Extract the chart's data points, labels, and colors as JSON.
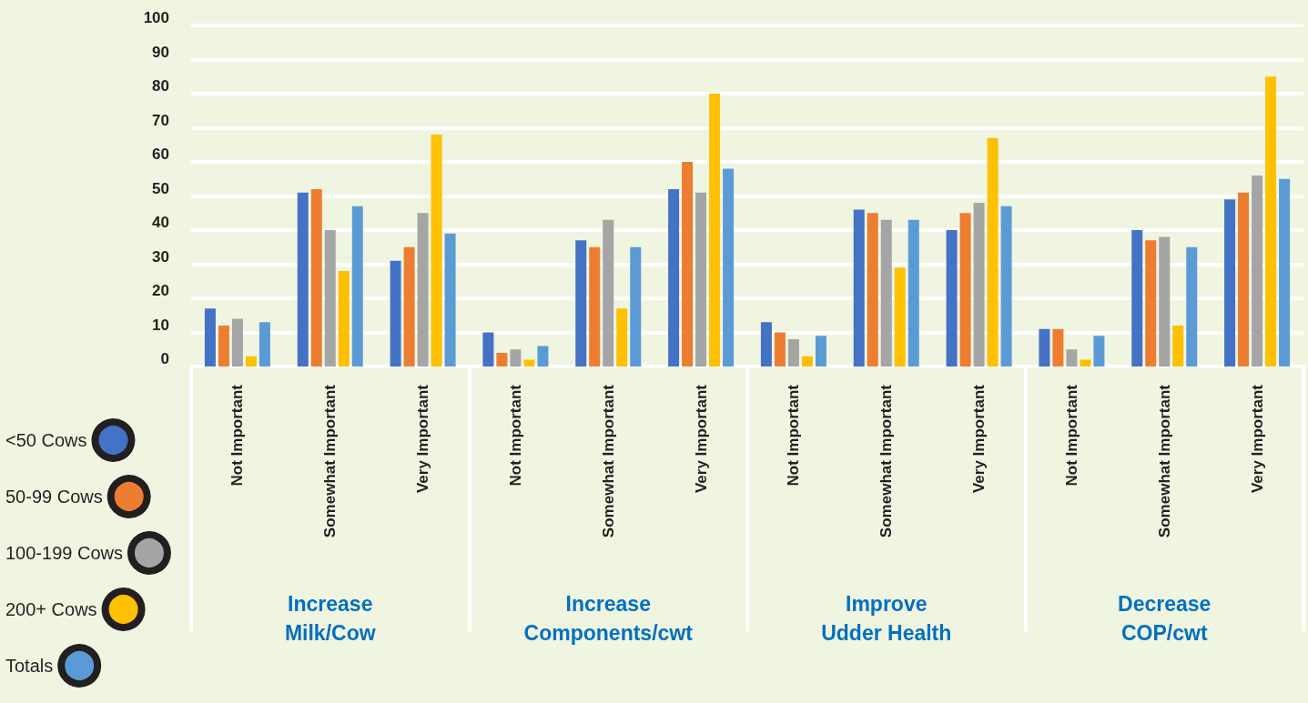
{
  "chart_data": {
    "type": "bar",
    "categories": [
      "Not Important",
      "Somewhat Important",
      "Very Important",
      "Not Important",
      "Somewhat Important",
      "Very Important",
      "Not Important",
      "Somewhat Important",
      "Very Important",
      "Not Important",
      "Somewhat Important",
      "Very Important"
    ],
    "series": [
      {
        "name": "<50 Cows",
        "color": "#4472c4",
        "values": [
          17,
          51,
          31,
          10,
          37,
          52,
          13,
          46,
          40,
          11,
          40,
          49
        ]
      },
      {
        "name": "50-99 Cows",
        "color": "#ed7d31",
        "values": [
          12,
          52,
          35,
          4,
          35,
          60,
          10,
          45,
          45,
          11,
          37,
          51
        ]
      },
      {
        "name": "100-199 Cows",
        "color": "#a5a5a5",
        "values": [
          14,
          40,
          45,
          5,
          43,
          51,
          8,
          43,
          48,
          5,
          38,
          56
        ]
      },
      {
        "name": "200+ Cows",
        "color": "#ffc000",
        "values": [
          3,
          28,
          68,
          2,
          17,
          80,
          3,
          29,
          67,
          2,
          12,
          85
        ]
      },
      {
        "name": "Totals",
        "color": "#5b9bd5",
        "values": [
          13,
          47,
          39,
          6,
          35,
          58,
          9,
          43,
          47,
          9,
          35,
          55
        ]
      }
    ],
    "ylim": [
      0,
      100
    ],
    "yticks": [
      0,
      10,
      20,
      30,
      40,
      50,
      60,
      70,
      80,
      90,
      100
    ],
    "grid": "y",
    "legend": "left",
    "annotations": [
      "Increase Milk/Cow",
      "Increase Components/cwt",
      "Improve Udder Health",
      "Decrease COP/cwt"
    ]
  }
}
